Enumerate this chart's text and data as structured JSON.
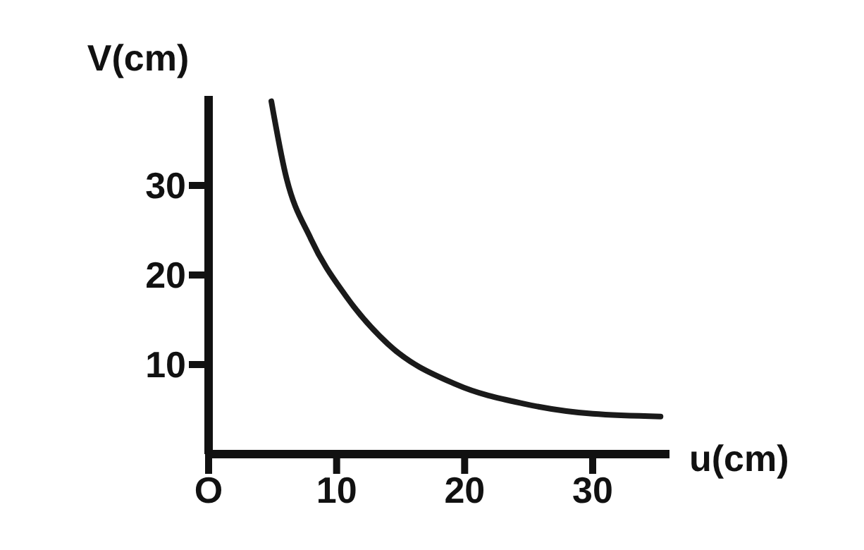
{
  "chart_data": {
    "type": "line",
    "xlabel": "u(cm)",
    "ylabel": "V(cm)",
    "x": [
      4.9,
      6,
      8,
      10.7,
      14,
      19.3,
      24.7,
      30,
      35.3
    ],
    "series": [
      {
        "color": "#1a1a1a",
        "values": [
          39.4,
          31.3,
          24,
          17.7,
          12.3,
          7.8,
          5.6,
          4.5,
          4.2
        ]
      }
    ],
    "xlim": [
      0,
      36
    ],
    "xticks": [
      {
        "value": 0,
        "label": "O"
      },
      10,
      20,
      30
    ],
    "ylim": [
      0,
      40
    ],
    "yticks": [
      10,
      20,
      30
    ],
    "grid": false,
    "legend": false,
    "marker": "none",
    "line_style": "solid"
  }
}
